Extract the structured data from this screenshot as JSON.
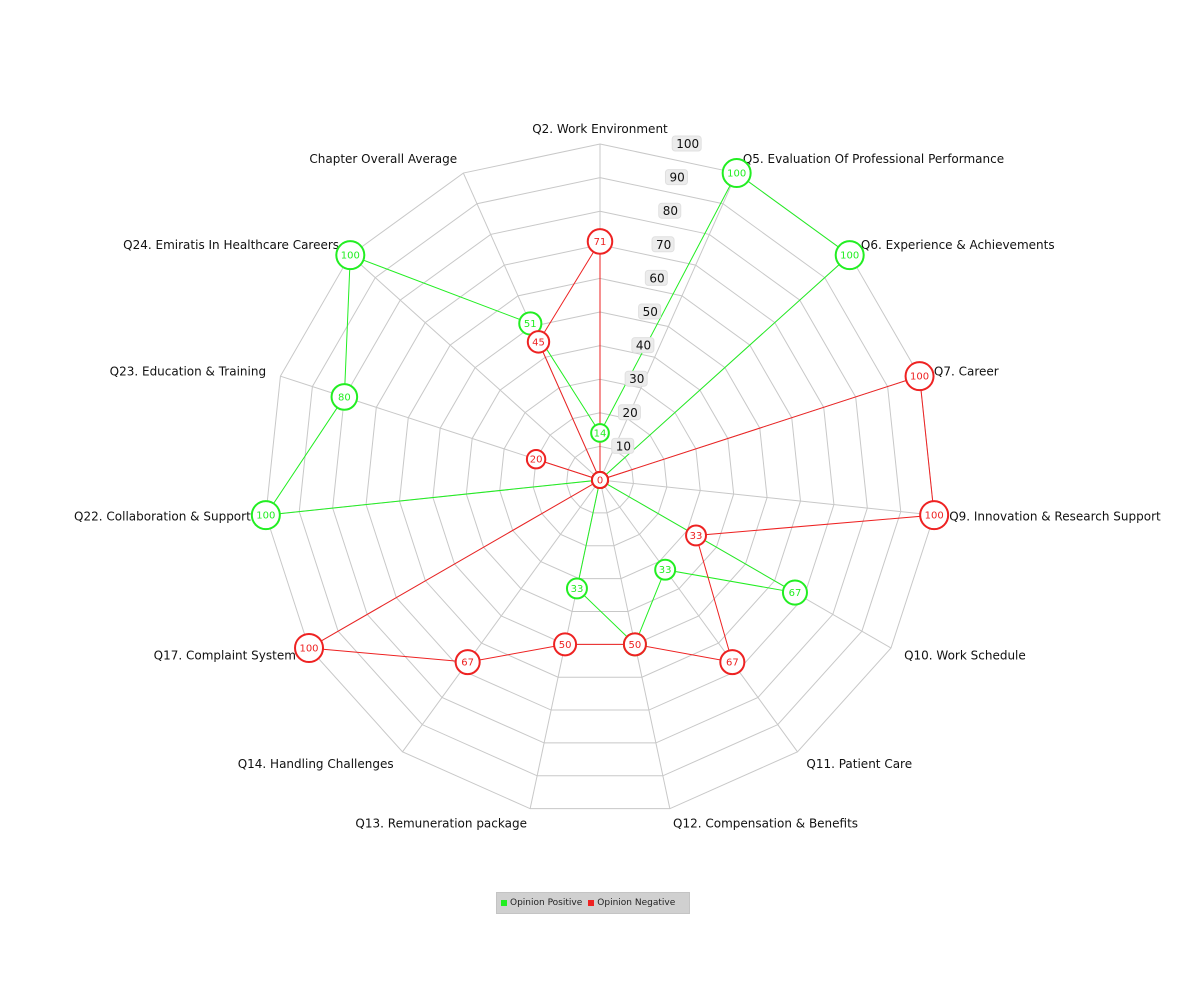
{
  "chart_data": {
    "type": "radar",
    "categories": [
      "Q2. Work Environment",
      "Q5. Evaluation Of Professional Performance",
      "Q6. Experience & Achievements",
      "Q7. Career",
      "Q9. Innovation & Research Support",
      "Q10. Work Schedule",
      "Q11. Patient Care",
      "Q12. Compensation & Benefits",
      "Q13. Remuneration package",
      "Q14. Handling Challenges",
      "Q17. Complaint System",
      "Q22. Collaboration & Support",
      "Q23. Education & Training",
      "Q24. Emiratis In Healthcare Careers",
      "Chapter Overall Average"
    ],
    "series": [
      {
        "name": "Opinion Positive",
        "color": "#22ee22",
        "values": [
          14,
          100,
          100,
          0,
          0,
          67,
          33,
          50,
          33,
          0,
          0,
          100,
          80,
          100,
          51
        ]
      },
      {
        "name": "Opinion Negative",
        "color": "#ee2222",
        "values": [
          71,
          0,
          0,
          100,
          100,
          33,
          67,
          50,
          50,
          67,
          100,
          0,
          20,
          0,
          45
        ]
      }
    ],
    "ticks": [
      10,
      20,
      30,
      40,
      50,
      60,
      70,
      80,
      90,
      100
    ],
    "rlim": [
      0,
      100
    ],
    "grid": true,
    "legend_position": "bottom-center"
  }
}
